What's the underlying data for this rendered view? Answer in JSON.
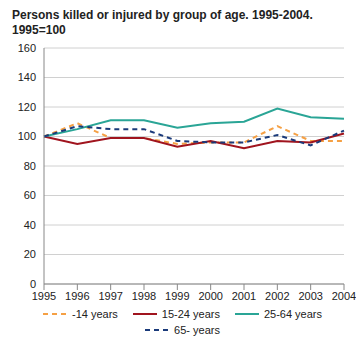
{
  "chart_data": {
    "type": "line",
    "title": "Persons killed or injured by group of age. 1995-2004.",
    "subtitle": "1995=100",
    "categories": [
      "1995",
      "1996",
      "1997",
      "1998",
      "1999",
      "2000",
      "2001",
      "2002",
      "2003",
      "2004"
    ],
    "series": [
      {
        "name": "-14 years",
        "color": "#f5a044",
        "line_style": "dashed",
        "values": [
          100,
          109,
          99,
          99,
          95,
          96,
          96,
          107,
          97,
          97
        ]
      },
      {
        "name": "15-24 years",
        "color": "#a0141e",
        "line_style": "solid",
        "values": [
          100,
          95,
          99,
          99,
          93,
          97,
          92,
          97,
          96,
          102
        ]
      },
      {
        "name": "25-64 years",
        "color": "#2aa596",
        "line_style": "solid",
        "values": [
          100,
          105,
          111,
          111,
          106,
          109,
          110,
          119,
          113,
          112
        ]
      },
      {
        "name": "65- years",
        "color": "#1a3a7a",
        "line_style": "dashed",
        "values": [
          100,
          107,
          105,
          105,
          97,
          96,
          96,
          101,
          94,
          104
        ]
      }
    ],
    "ylim": [
      0,
      160
    ],
    "yticks": [
      0,
      20,
      40,
      60,
      80,
      100,
      120,
      140,
      160
    ],
    "grid": true,
    "legend": "bottom"
  }
}
